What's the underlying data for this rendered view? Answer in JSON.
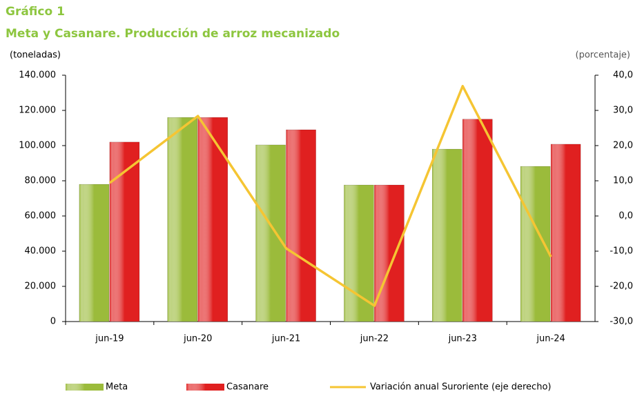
{
  "chart_data": {
    "type": "bar",
    "title": "Gráfico 1",
    "subtitle": "Meta y Casanare. Producción de arroz mecanizado",
    "y_label": "(toneladas)",
    "y2_label": "(porcentaje)",
    "categories": [
      "jun-19",
      "jun-20",
      "jun-21",
      "jun-22",
      "jun-23",
      "jun-24"
    ],
    "series": [
      {
        "name": "Meta",
        "type": "bar",
        "color": "#9bbb3b",
        "values": [
          78000,
          116000,
          100400,
          77600,
          98000,
          88200
        ]
      },
      {
        "name": "Casanare",
        "type": "bar",
        "color": "#e02020",
        "values": [
          102000,
          116000,
          109000,
          77600,
          115000,
          100800
        ]
      },
      {
        "name": "Variación anual Suroriente (eje derecho)",
        "type": "line",
        "axis": "y2",
        "color": "#f5c533",
        "values": [
          9.4,
          28.4,
          -9.2,
          -25.5,
          36.9,
          -11.6
        ]
      }
    ],
    "ylim": [
      0,
      140000
    ],
    "yticks": [
      0,
      {
        "value": 20000,
        "label": "20.000"
      },
      {
        "value": 40000,
        "label": "40.000"
      },
      {
        "value": 60000,
        "label": "60.000"
      },
      {
        "value": 80000,
        "label": "80.000"
      },
      {
        "value": 100000,
        "label": "100.000"
      },
      {
        "value": 120000,
        "label": "120.000"
      },
      {
        "value": 140000,
        "label": "140.000"
      }
    ],
    "y2lim": [
      -30,
      40
    ],
    "y2ticks": [
      {
        "value": -30,
        "label": "-30,0"
      },
      {
        "value": -20,
        "label": "-20,0"
      },
      {
        "value": -10,
        "label": "-10,0"
      },
      {
        "value": 0,
        "label": "0,0"
      },
      {
        "value": 10,
        "label": "10,0"
      },
      {
        "value": 20,
        "label": "20,0"
      },
      {
        "value": 30,
        "label": "30,0"
      },
      {
        "value": 40,
        "label": "40,0"
      }
    ],
    "grid": false,
    "legend": "bottom"
  }
}
